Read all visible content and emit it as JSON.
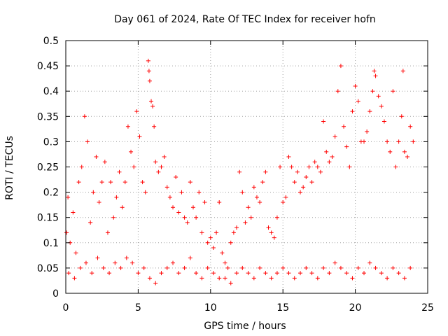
{
  "chart_data": {
    "type": "scatter",
    "title": "Day 061 of 2024, Rate Of TEC Index for receiver hofn",
    "xlabel": "GPS time / hours",
    "ylabel": "ROTI / TECUs",
    "xlim": [
      0,
      25
    ],
    "ylim": [
      0,
      0.5
    ],
    "x_ticks": [
      "0",
      "5",
      "10",
      "15",
      "20",
      "25"
    ],
    "y_ticks": [
      "0",
      "0.05",
      "0.1",
      "0.15",
      "0.2",
      "0.25",
      "0.3",
      "0.35",
      "0.4",
      "0.45",
      "0.5"
    ],
    "grid": true,
    "marker": "+",
    "color": "#ff0000",
    "series": [
      {
        "values": [
          [
            0.05,
            0.12
          ],
          [
            0.15,
            0.19
          ],
          [
            0.3,
            0.1
          ],
          [
            0.5,
            0.16
          ],
          [
            0.7,
            0.08
          ],
          [
            0.9,
            0.22
          ],
          [
            1.1,
            0.25
          ],
          [
            1.3,
            0.35
          ],
          [
            1.5,
            0.3
          ],
          [
            1.7,
            0.14
          ],
          [
            1.9,
            0.2
          ],
          [
            2.1,
            0.27
          ],
          [
            2.3,
            0.18
          ],
          [
            2.5,
            0.22
          ],
          [
            2.7,
            0.26
          ],
          [
            2.9,
            0.12
          ],
          [
            3.1,
            0.22
          ],
          [
            3.3,
            0.15
          ],
          [
            3.5,
            0.19
          ],
          [
            3.7,
            0.24
          ],
          [
            3.9,
            0.17
          ],
          [
            4.1,
            0.22
          ],
          [
            4.3,
            0.33
          ],
          [
            4.5,
            0.28
          ],
          [
            4.7,
            0.25
          ],
          [
            4.9,
            0.36
          ],
          [
            5.1,
            0.31
          ],
          [
            5.3,
            0.22
          ],
          [
            5.5,
            0.2
          ],
          [
            5.7,
            0.46
          ],
          [
            5.75,
            0.44
          ],
          [
            5.8,
            0.42
          ],
          [
            5.9,
            0.38
          ],
          [
            6.0,
            0.37
          ],
          [
            6.1,
            0.33
          ],
          [
            6.2,
            0.26
          ],
          [
            6.4,
            0.24
          ],
          [
            6.6,
            0.25
          ],
          [
            6.8,
            0.27
          ],
          [
            7.0,
            0.21
          ],
          [
            7.2,
            0.19
          ],
          [
            7.4,
            0.17
          ],
          [
            7.6,
            0.23
          ],
          [
            7.8,
            0.16
          ],
          [
            8.0,
            0.2
          ],
          [
            8.2,
            0.15
          ],
          [
            8.4,
            0.14
          ],
          [
            8.6,
            0.22
          ],
          [
            8.8,
            0.17
          ],
          [
            9.0,
            0.15
          ],
          [
            9.2,
            0.2
          ],
          [
            9.4,
            0.12
          ],
          [
            9.6,
            0.18
          ],
          [
            9.8,
            0.1
          ],
          [
            10.0,
            0.11
          ],
          [
            10.2,
            0.09
          ],
          [
            10.4,
            0.12
          ],
          [
            10.6,
            0.18
          ],
          [
            10.8,
            0.08
          ],
          [
            11.0,
            0.06
          ],
          [
            11.2,
            0.05
          ],
          [
            11.4,
            0.1
          ],
          [
            11.6,
            0.12
          ],
          [
            11.8,
            0.13
          ],
          [
            12.0,
            0.24
          ],
          [
            12.2,
            0.2
          ],
          [
            12.4,
            0.14
          ],
          [
            12.6,
            0.17
          ],
          [
            12.8,
            0.15
          ],
          [
            13.0,
            0.21
          ],
          [
            13.2,
            0.19
          ],
          [
            13.4,
            0.18
          ],
          [
            13.6,
            0.22
          ],
          [
            13.8,
            0.24
          ],
          [
            14.0,
            0.13
          ],
          [
            14.2,
            0.12
          ],
          [
            14.4,
            0.11
          ],
          [
            14.6,
            0.15
          ],
          [
            14.8,
            0.25
          ],
          [
            15.0,
            0.18
          ],
          [
            15.2,
            0.19
          ],
          [
            15.4,
            0.27
          ],
          [
            15.6,
            0.25
          ],
          [
            15.8,
            0.22
          ],
          [
            16.0,
            0.24
          ],
          [
            16.2,
            0.2
          ],
          [
            16.4,
            0.21
          ],
          [
            16.6,
            0.23
          ],
          [
            16.8,
            0.25
          ],
          [
            17.0,
            0.22
          ],
          [
            17.2,
            0.26
          ],
          [
            17.4,
            0.25
          ],
          [
            17.6,
            0.24
          ],
          [
            17.8,
            0.34
          ],
          [
            18.0,
            0.28
          ],
          [
            18.2,
            0.26
          ],
          [
            18.4,
            0.27
          ],
          [
            18.6,
            0.31
          ],
          [
            18.8,
            0.4
          ],
          [
            19.0,
            0.45
          ],
          [
            19.2,
            0.33
          ],
          [
            19.4,
            0.29
          ],
          [
            19.6,
            0.25
          ],
          [
            19.8,
            0.36
          ],
          [
            20.0,
            0.41
          ],
          [
            20.2,
            0.38
          ],
          [
            20.4,
            0.3
          ],
          [
            20.6,
            0.3
          ],
          [
            20.8,
            0.32
          ],
          [
            21.0,
            0.36
          ],
          [
            21.2,
            0.4
          ],
          [
            21.3,
            0.44
          ],
          [
            21.4,
            0.43
          ],
          [
            21.6,
            0.39
          ],
          [
            21.8,
            0.37
          ],
          [
            22.0,
            0.34
          ],
          [
            22.2,
            0.3
          ],
          [
            22.4,
            0.28
          ],
          [
            22.6,
            0.4
          ],
          [
            22.8,
            0.25
          ],
          [
            23.0,
            0.3
          ],
          [
            23.2,
            0.35
          ],
          [
            23.3,
            0.44
          ],
          [
            23.4,
            0.28
          ],
          [
            23.6,
            0.27
          ],
          [
            23.8,
            0.33
          ],
          [
            24.0,
            0.3
          ],
          [
            0.2,
            0.04
          ],
          [
            0.6,
            0.03
          ],
          [
            1.0,
            0.05
          ],
          [
            1.4,
            0.06
          ],
          [
            1.8,
            0.04
          ],
          [
            2.2,
            0.07
          ],
          [
            2.6,
            0.05
          ],
          [
            3.0,
            0.04
          ],
          [
            3.4,
            0.06
          ],
          [
            3.8,
            0.05
          ],
          [
            4.2,
            0.07
          ],
          [
            4.6,
            0.06
          ],
          [
            5.0,
            0.04
          ],
          [
            5.4,
            0.05
          ],
          [
            5.8,
            0.03
          ],
          [
            6.2,
            0.02
          ],
          [
            6.6,
            0.04
          ],
          [
            7.0,
            0.05
          ],
          [
            7.4,
            0.06
          ],
          [
            7.8,
            0.04
          ],
          [
            8.2,
            0.05
          ],
          [
            8.6,
            0.07
          ],
          [
            9.0,
            0.04
          ],
          [
            9.4,
            0.03
          ],
          [
            9.8,
            0.05
          ],
          [
            10.2,
            0.04
          ],
          [
            10.6,
            0.03
          ],
          [
            11.0,
            0.03
          ],
          [
            11.4,
            0.02
          ],
          [
            11.8,
            0.04
          ],
          [
            12.2,
            0.05
          ],
          [
            12.6,
            0.04
          ],
          [
            13.0,
            0.03
          ],
          [
            13.4,
            0.05
          ],
          [
            13.8,
            0.04
          ],
          [
            14.2,
            0.03
          ],
          [
            14.6,
            0.04
          ],
          [
            15.0,
            0.05
          ],
          [
            15.4,
            0.04
          ],
          [
            15.8,
            0.03
          ],
          [
            16.2,
            0.04
          ],
          [
            16.6,
            0.05
          ],
          [
            17.0,
            0.04
          ],
          [
            17.4,
            0.03
          ],
          [
            17.8,
            0.05
          ],
          [
            18.2,
            0.04
          ],
          [
            18.6,
            0.06
          ],
          [
            19.0,
            0.05
          ],
          [
            19.4,
            0.04
          ],
          [
            19.8,
            0.03
          ],
          [
            20.2,
            0.05
          ],
          [
            20.6,
            0.04
          ],
          [
            21.0,
            0.06
          ],
          [
            21.4,
            0.05
          ],
          [
            21.8,
            0.04
          ],
          [
            22.2,
            0.03
          ],
          [
            22.6,
            0.05
          ],
          [
            23.0,
            0.04
          ],
          [
            23.4,
            0.03
          ],
          [
            23.8,
            0.05
          ]
        ]
      }
    ]
  }
}
